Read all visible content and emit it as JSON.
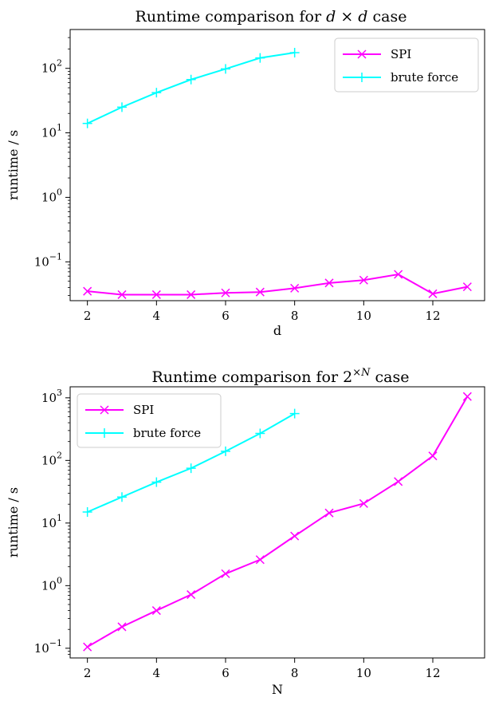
{
  "chart_data": [
    {
      "type": "line",
      "title": "Runtime comparison for d × d case",
      "xlabel": "d",
      "ylabel": "runtime / s",
      "yscale": "log",
      "xlim": [
        1.5,
        13.5
      ],
      "ylim": [
        0.025,
        400
      ],
      "xticks": [
        2,
        4,
        6,
        8,
        10,
        12
      ],
      "yticks": [
        0.1,
        1,
        10,
        100
      ],
      "ytick_labels": [
        {
          "base": "10",
          "exp": "−1"
        },
        {
          "base": "10",
          "exp": "0"
        },
        {
          "base": "10",
          "exp": "1"
        },
        {
          "base": "10",
          "exp": "2"
        }
      ],
      "grid": false,
      "legend_position": "top-right",
      "series": [
        {
          "name": "SPI",
          "color": "#ff00ff",
          "marker": "x",
          "x": [
            2,
            3,
            4,
            5,
            6,
            7,
            8,
            9,
            10,
            11,
            12,
            13
          ],
          "y": [
            0.035,
            0.031,
            0.031,
            0.031,
            0.033,
            0.034,
            0.039,
            0.047,
            0.052,
            0.064,
            0.032,
            0.041
          ]
        },
        {
          "name": "brute force",
          "color": "#00ffff",
          "marker": "+",
          "x": [
            2,
            3,
            4,
            5,
            6,
            7,
            8
          ],
          "y": [
            14,
            25,
            42,
            67,
            98,
            145,
            175
          ]
        }
      ]
    },
    {
      "type": "line",
      "title": "Runtime comparison for 2×N case",
      "xlabel": "N",
      "ylabel": "runtime / s",
      "yscale": "log",
      "xlim": [
        1.5,
        13.5
      ],
      "ylim": [
        0.07,
        1500
      ],
      "xticks": [
        2,
        4,
        6,
        8,
        10,
        12
      ],
      "yticks": [
        0.1,
        1,
        10,
        100,
        1000
      ],
      "ytick_labels": [
        {
          "base": "10",
          "exp": "−1"
        },
        {
          "base": "10",
          "exp": "0"
        },
        {
          "base": "10",
          "exp": "1"
        },
        {
          "base": "10",
          "exp": "2"
        },
        {
          "base": "10",
          "exp": "3"
        }
      ],
      "grid": false,
      "legend_position": "top-left",
      "series": [
        {
          "name": "SPI",
          "color": "#ff00ff",
          "marker": "x",
          "x": [
            2,
            3,
            4,
            5,
            6,
            7,
            8,
            9,
            10,
            11,
            12,
            13
          ],
          "y": [
            0.105,
            0.22,
            0.4,
            0.72,
            1.55,
            2.6,
            6.2,
            14.5,
            20.5,
            46,
            118,
            1050
          ]
        },
        {
          "name": "brute force",
          "color": "#00ffff",
          "marker": "+",
          "x": [
            2,
            3,
            4,
            5,
            6,
            7,
            8
          ],
          "y": [
            15,
            26,
            45,
            75,
            140,
            270,
            560
          ]
        }
      ]
    }
  ]
}
